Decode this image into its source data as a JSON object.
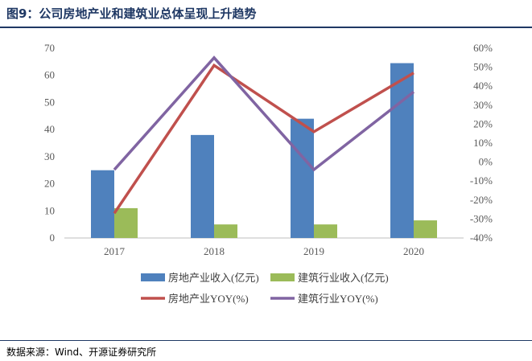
{
  "figure": {
    "title": "图9：公司房地产业和建筑业总体呈现上升趋势",
    "source": "数据来源：Wind、开源证券研究所"
  },
  "chart_data": {
    "type": "bar",
    "categories": [
      "2017",
      "2018",
      "2019",
      "2020"
    ],
    "series": [
      {
        "name": "房地产业收入(亿元)",
        "kind": "bar",
        "axis": "left",
        "color": "#4f81bd",
        "values": [
          25,
          38,
          44,
          64.5
        ]
      },
      {
        "name": "建筑行业收入(亿元)",
        "kind": "bar",
        "axis": "left",
        "color": "#9bbb59",
        "values": [
          11,
          5,
          5,
          6.5
        ]
      },
      {
        "name": "房地产业YOY(%)",
        "kind": "line",
        "axis": "right",
        "color": "#c0504d",
        "values": [
          -27,
          51,
          16,
          47
        ]
      },
      {
        "name": "建筑行业YOY(%)",
        "kind": "line",
        "axis": "right",
        "color": "#8064a2",
        "values": [
          -4,
          55,
          -4,
          37
        ]
      }
    ],
    "y_left": {
      "min": 0,
      "max": 70,
      "step": 10,
      "ticks": [
        "0",
        "10",
        "20",
        "30",
        "40",
        "50",
        "60",
        "70"
      ]
    },
    "y_right": {
      "min": -40,
      "max": 60,
      "step": 10,
      "ticks": [
        "-40%",
        "-30%",
        "-20%",
        "-10%",
        "0%",
        "10%",
        "20%",
        "30%",
        "40%",
        "50%",
        "60%"
      ]
    },
    "grid": false,
    "legend_position": "bottom"
  }
}
